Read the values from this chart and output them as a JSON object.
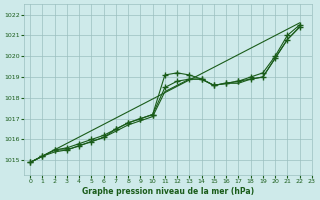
{
  "title": "Graphe pression niveau de la mer (hPa)",
  "xlim": [
    -0.5,
    23
  ],
  "ylim": [
    1014.3,
    1022.5
  ],
  "yticks": [
    1015,
    1016,
    1017,
    1018,
    1019,
    1020,
    1021,
    1022
  ],
  "xticks": [
    0,
    1,
    2,
    3,
    4,
    5,
    6,
    7,
    8,
    9,
    10,
    11,
    12,
    13,
    14,
    15,
    16,
    17,
    18,
    19,
    20,
    21,
    22,
    23
  ],
  "bg_color": "#ceeaea",
  "grid_color": "#9bbfbf",
  "line_color": "#1a5c1a",
  "series": [
    {
      "x": [
        0,
        1,
        2,
        3,
        4,
        5,
        6,
        7,
        8,
        9,
        10,
        11,
        12,
        13,
        14,
        15,
        16,
        17,
        18,
        19,
        20,
        21,
        22
      ],
      "y": [
        1014.9,
        1015.2,
        1015.5,
        1015.6,
        1015.8,
        1016.0,
        1016.2,
        1016.5,
        1016.8,
        1017.0,
        1017.2,
        1019.1,
        1019.2,
        1019.1,
        1018.9,
        1018.6,
        1018.7,
        1018.8,
        1019.0,
        1019.2,
        1020.0,
        1021.0,
        1021.5
      ],
      "has_markers": true
    },
    {
      "x": [
        0,
        1,
        2,
        3,
        4,
        5,
        6,
        7,
        8,
        9,
        10,
        11,
        12,
        13,
        14,
        15,
        16,
        17,
        18,
        19,
        20,
        21,
        22
      ],
      "y": [
        1014.9,
        1015.2,
        1015.5,
        1015.5,
        1015.7,
        1015.9,
        1016.1,
        1016.5,
        1016.8,
        1017.0,
        1017.2,
        1018.5,
        1018.8,
        1018.9,
        1018.9,
        1018.6,
        1018.7,
        1018.8,
        1018.9,
        1019.0,
        1019.9,
        1020.8,
        1021.4
      ],
      "has_markers": true
    },
    {
      "x": [
        0,
        1,
        2,
        3,
        4,
        5,
        6,
        7,
        8,
        9,
        10,
        11,
        12,
        13,
        14,
        15,
        16,
        17,
        18,
        19,
        20,
        21,
        22
      ],
      "y": [
        1014.9,
        1015.2,
        1015.4,
        1015.5,
        1015.7,
        1015.9,
        1016.1,
        1016.4,
        1016.7,
        1016.9,
        1017.1,
        1018.3,
        1018.6,
        1018.9,
        1018.9,
        1018.6,
        1018.7,
        1018.7,
        1018.9,
        1019.0,
        1019.9,
        1020.8,
        1021.4
      ],
      "has_markers": false
    },
    {
      "x": [
        0,
        22
      ],
      "y": [
        1014.9,
        1021.6
      ],
      "has_markers": false
    }
  ]
}
